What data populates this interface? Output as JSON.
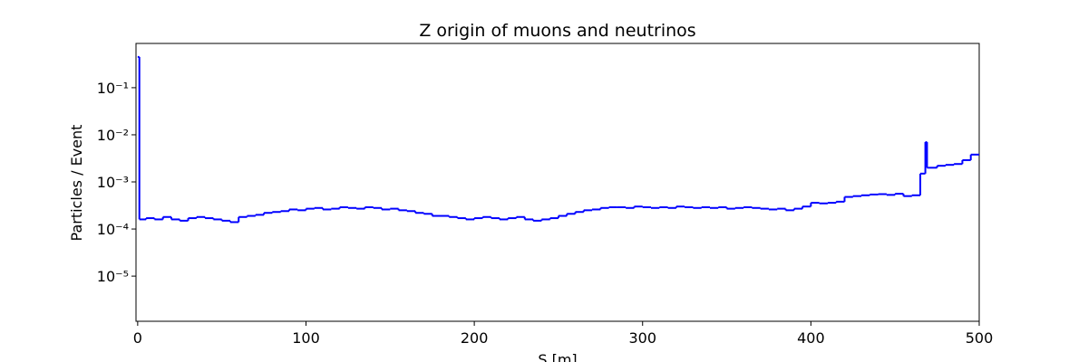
{
  "chart_data": {
    "type": "histogram_step",
    "title": "Z origin of muons and neutrinos",
    "xlabel": "S [m]",
    "ylabel": "Particles / Event",
    "color": "#0000ff",
    "log_y": true,
    "bins": [
      0,
      1,
      5,
      10,
      15,
      20,
      25,
      30,
      35,
      40,
      45,
      50,
      55,
      60,
      65,
      70,
      75,
      80,
      85,
      90,
      95,
      100,
      105,
      110,
      115,
      120,
      125,
      130,
      135,
      140,
      145,
      150,
      155,
      160,
      165,
      170,
      175,
      180,
      185,
      190,
      195,
      200,
      205,
      210,
      215,
      220,
      225,
      230,
      235,
      240,
      245,
      250,
      255,
      260,
      265,
      270,
      275,
      280,
      285,
      290,
      295,
      300,
      305,
      310,
      315,
      320,
      325,
      330,
      335,
      340,
      345,
      350,
      355,
      360,
      365,
      370,
      375,
      380,
      385,
      390,
      395,
      400,
      405,
      410,
      415,
      420,
      425,
      430,
      435,
      440,
      445,
      450,
      455,
      460,
      465,
      468,
      469,
      470,
      475,
      480,
      485,
      490,
      495,
      500
    ],
    "values": [
      0.45,
      0.00016,
      0.00017,
      0.00016,
      0.00018,
      0.00016,
      0.00015,
      0.00017,
      0.00018,
      0.00017,
      0.00016,
      0.00015,
      0.00014,
      0.00018,
      0.00019,
      0.0002,
      0.00022,
      0.00023,
      0.00024,
      0.00026,
      0.00025,
      0.00027,
      0.00028,
      0.00026,
      0.00027,
      0.00029,
      0.00028,
      0.00027,
      0.00029,
      0.00028,
      0.00026,
      0.00027,
      0.00025,
      0.00024,
      0.00022,
      0.00021,
      0.00019,
      0.00019,
      0.00018,
      0.00017,
      0.00016,
      0.00017,
      0.00018,
      0.00017,
      0.00016,
      0.00017,
      0.00018,
      0.00016,
      0.00015,
      0.00016,
      0.00017,
      0.00019,
      0.00021,
      0.00023,
      0.00025,
      0.00026,
      0.00028,
      0.00029,
      0.00029,
      0.00028,
      0.0003,
      0.00029,
      0.00028,
      0.00029,
      0.00028,
      0.0003,
      0.00029,
      0.00028,
      0.00029,
      0.00028,
      0.00029,
      0.00027,
      0.00028,
      0.00029,
      0.00028,
      0.00027,
      0.00026,
      0.00027,
      0.00025,
      0.00027,
      0.0003,
      0.00036,
      0.00035,
      0.00036,
      0.00038,
      0.00048,
      0.0005,
      0.00052,
      0.00054,
      0.00055,
      0.00053,
      0.00056,
      0.0005,
      0.00052,
      0.0015,
      0.007,
      0.002,
      0.002,
      0.0022,
      0.0023,
      0.0024,
      0.0029,
      0.0038
    ],
    "xlim": [
      -1,
      500
    ],
    "ylim": [
      1.1e-06,
      0.87
    ],
    "xticks": [
      0,
      100,
      200,
      300,
      400,
      500
    ],
    "yticks": [
      {
        "value": 1e-05,
        "label": "10⁻⁵"
      },
      {
        "value": 0.0001,
        "label": "10⁻⁴"
      },
      {
        "value": 0.001,
        "label": "10⁻³"
      },
      {
        "value": 0.01,
        "label": "10⁻²"
      },
      {
        "value": 0.1,
        "label": "10⁻¹"
      }
    ]
  }
}
